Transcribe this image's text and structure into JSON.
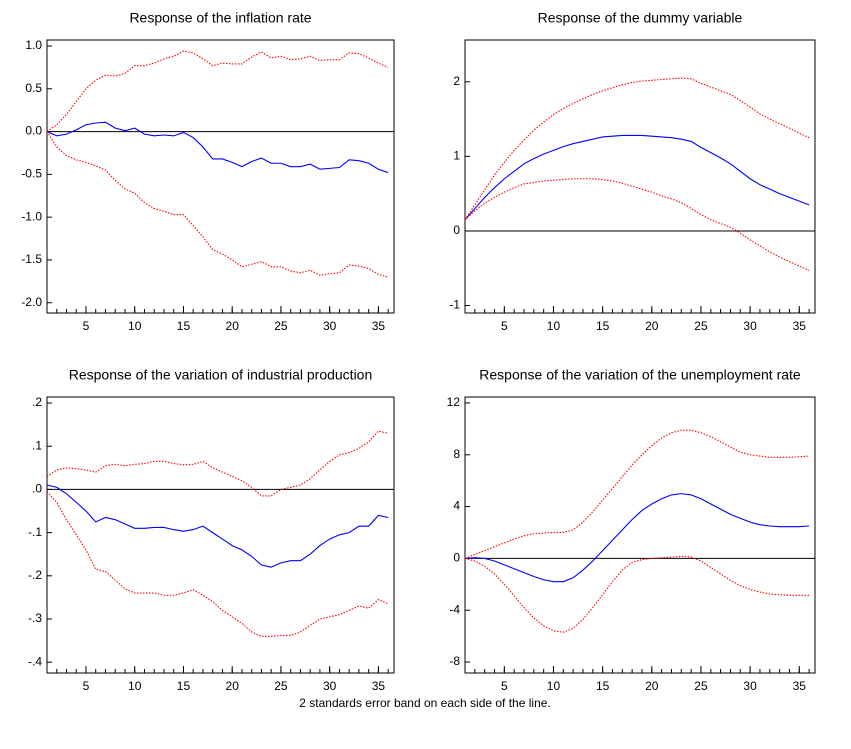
{
  "chart_data": [
    {
      "type": "line",
      "title": "Response of the inflation rate",
      "x": [
        1,
        2,
        3,
        4,
        5,
        6,
        7,
        8,
        9,
        10,
        11,
        12,
        13,
        14,
        15,
        16,
        17,
        18,
        19,
        20,
        21,
        22,
        23,
        24,
        25,
        26,
        27,
        28,
        29,
        30,
        31,
        32,
        33,
        34,
        35,
        36
      ],
      "xlim": [
        1,
        36.6
      ],
      "xticks": [
        5,
        10,
        15,
        20,
        25,
        30,
        35
      ],
      "ylim": [
        -2.12,
        1.07
      ],
      "yticks": [
        {
          "value": 1,
          "label": "1.0"
        },
        0.5,
        {
          "value": 0,
          "label": "0.0"
        },
        -0.5,
        {
          "value": -1,
          "label": "-1.0"
        },
        -1.5,
        {
          "value": -2,
          "label": "-2.0"
        }
      ],
      "reference_line": 0,
      "series": [
        {
          "color": "#0000ff",
          "dash": "solid",
          "values": [
            0,
            -0.05,
            -0.03,
            0.02,
            0.08,
            0.1,
            0.11,
            0.04,
            0.01,
            0.04,
            -0.03,
            -0.05,
            -0.04,
            -0.05,
            -0.01,
            -0.07,
            -0.18,
            -0.32,
            -0.32,
            -0.36,
            -0.41,
            -0.35,
            -0.31,
            -0.37,
            -0.37,
            -0.41,
            -0.41,
            -0.38,
            -0.44,
            -0.43,
            -0.42,
            -0.33,
            -0.34,
            -0.37,
            -0.44,
            -0.48
          ]
        },
        {
          "color": "#ff0000",
          "dash": "dotted",
          "values": [
            0,
            0.08,
            0.2,
            0.35,
            0.5,
            0.6,
            0.66,
            0.65,
            0.68,
            0.77,
            0.77,
            0.8,
            0.85,
            0.88,
            0.94,
            0.92,
            0.85,
            0.77,
            0.8,
            0.79,
            0.79,
            0.87,
            0.93,
            0.86,
            0.88,
            0.84,
            0.85,
            0.88,
            0.83,
            0.84,
            0.84,
            0.92,
            0.91,
            0.86,
            0.8,
            0.75
          ]
        },
        {
          "color": "#ff0000",
          "dash": "dotted",
          "values": [
            0,
            -0.18,
            -0.28,
            -0.33,
            -0.36,
            -0.4,
            -0.45,
            -0.57,
            -0.67,
            -0.72,
            -0.83,
            -0.9,
            -0.93,
            -0.97,
            -0.97,
            -1.1,
            -1.23,
            -1.38,
            -1.43,
            -1.5,
            -1.58,
            -1.55,
            -1.52,
            -1.58,
            -1.58,
            -1.63,
            -1.65,
            -1.62,
            -1.68,
            -1.66,
            -1.65,
            -1.56,
            -1.57,
            -1.6,
            -1.67,
            -1.7
          ]
        }
      ]
    },
    {
      "type": "line",
      "title": "Response of the dummy variable",
      "x": [
        1,
        2,
        3,
        4,
        5,
        6,
        7,
        8,
        9,
        10,
        11,
        12,
        13,
        14,
        15,
        16,
        17,
        18,
        19,
        20,
        21,
        22,
        23,
        24,
        25,
        26,
        27,
        28,
        29,
        30,
        31,
        32,
        33,
        34,
        35,
        36
      ],
      "xlim": [
        1,
        36.6
      ],
      "xticks": [
        5,
        10,
        15,
        20,
        25,
        30,
        35
      ],
      "ylim": [
        -1.1,
        2.56
      ],
      "yticks": [
        -1,
        0,
        1,
        2
      ],
      "reference_line": 0,
      "series": [
        {
          "color": "#0000ff",
          "dash": "solid",
          "values": [
            0.15,
            0.3,
            0.45,
            0.58,
            0.7,
            0.8,
            0.9,
            0.97,
            1.03,
            1.08,
            1.13,
            1.17,
            1.2,
            1.23,
            1.26,
            1.27,
            1.28,
            1.28,
            1.28,
            1.27,
            1.26,
            1.25,
            1.23,
            1.2,
            1.12,
            1.05,
            0.98,
            0.9,
            0.8,
            0.7,
            0.62,
            0.56,
            0.5,
            0.45,
            0.4,
            0.35
          ]
        },
        {
          "color": "#ff0000",
          "dash": "dotted",
          "values": [
            0.15,
            0.35,
            0.55,
            0.75,
            0.92,
            1.08,
            1.22,
            1.35,
            1.46,
            1.56,
            1.64,
            1.71,
            1.77,
            1.83,
            1.88,
            1.92,
            1.96,
            1.99,
            2.01,
            2.02,
            2.03,
            2.04,
            2.05,
            2.04,
            1.98,
            1.93,
            1.88,
            1.83,
            1.75,
            1.66,
            1.57,
            1.5,
            1.44,
            1.38,
            1.31,
            1.25
          ]
        },
        {
          "color": "#ff0000",
          "dash": "dotted",
          "values": [
            0.15,
            0.27,
            0.37,
            0.45,
            0.52,
            0.58,
            0.63,
            0.65,
            0.67,
            0.68,
            0.69,
            0.7,
            0.7,
            0.7,
            0.69,
            0.67,
            0.64,
            0.6,
            0.56,
            0.52,
            0.47,
            0.43,
            0.38,
            0.3,
            0.22,
            0.15,
            0.1,
            0.05,
            -0.03,
            -0.12,
            -0.2,
            -0.28,
            -0.35,
            -0.41,
            -0.47,
            -0.53
          ]
        }
      ]
    },
    {
      "type": "line",
      "title": "Response of the variation of industrial production",
      "x": [
        1,
        2,
        3,
        4,
        5,
        6,
        7,
        8,
        9,
        10,
        11,
        12,
        13,
        14,
        15,
        16,
        17,
        18,
        19,
        20,
        21,
        22,
        23,
        24,
        25,
        26,
        27,
        28,
        29,
        30,
        31,
        32,
        33,
        34,
        35,
        36
      ],
      "xlim": [
        1,
        36.6
      ],
      "xticks": [
        5,
        10,
        15,
        20,
        25,
        30,
        35
      ],
      "ylim": [
        -0.425,
        0.214
      ],
      "yticks": [
        {
          "value": 0.2,
          "label": ".2"
        },
        {
          "value": 0.1,
          "label": ".1"
        },
        {
          "value": 0,
          "label": ".0"
        },
        {
          "value": -0.1,
          "label": "-.1"
        },
        {
          "value": -0.2,
          "label": "-.2"
        },
        {
          "value": -0.3,
          "label": "-.3"
        },
        {
          "value": -0.4,
          "label": "-.4"
        }
      ],
      "reference_line": 0,
      "series": [
        {
          "color": "#0000ff",
          "dash": "solid",
          "values": [
            0.01,
            0.005,
            -0.01,
            -0.03,
            -0.05,
            -0.075,
            -0.065,
            -0.07,
            -0.08,
            -0.09,
            -0.09,
            -0.088,
            -0.088,
            -0.093,
            -0.097,
            -0.093,
            -0.085,
            -0.1,
            -0.115,
            -0.13,
            -0.14,
            -0.155,
            -0.175,
            -0.18,
            -0.17,
            -0.165,
            -0.165,
            -0.15,
            -0.13,
            -0.115,
            -0.105,
            -0.1,
            -0.085,
            -0.085,
            -0.06,
            -0.065
          ]
        },
        {
          "color": "#ff0000",
          "dash": "dotted",
          "values": [
            0.03,
            0.045,
            0.05,
            0.048,
            0.045,
            0.04,
            0.055,
            0.058,
            0.055,
            0.058,
            0.06,
            0.065,
            0.065,
            0.06,
            0.057,
            0.058,
            0.065,
            0.05,
            0.04,
            0.03,
            0.02,
            0.005,
            -0.015,
            -0.015,
            0,
            0.005,
            0.01,
            0.025,
            0.045,
            0.065,
            0.08,
            0.085,
            0.095,
            0.11,
            0.135,
            0.13
          ]
        },
        {
          "color": "#ff0000",
          "dash": "dotted",
          "values": [
            -0.005,
            -0.03,
            -0.07,
            -0.105,
            -0.14,
            -0.185,
            -0.19,
            -0.21,
            -0.23,
            -0.24,
            -0.24,
            -0.24,
            -0.245,
            -0.245,
            -0.24,
            -0.232,
            -0.245,
            -0.26,
            -0.28,
            -0.295,
            -0.31,
            -0.33,
            -0.34,
            -0.34,
            -0.338,
            -0.338,
            -0.33,
            -0.315,
            -0.3,
            -0.295,
            -0.29,
            -0.28,
            -0.27,
            -0.275,
            -0.255,
            -0.265
          ]
        }
      ]
    },
    {
      "type": "line",
      "title": "Response of the variation of the unemployment rate",
      "x": [
        1,
        2,
        3,
        4,
        5,
        6,
        7,
        8,
        9,
        10,
        11,
        12,
        13,
        14,
        15,
        16,
        17,
        18,
        19,
        20,
        21,
        22,
        23,
        24,
        25,
        26,
        27,
        28,
        29,
        30,
        31,
        32,
        33,
        34,
        35,
        36
      ],
      "xlim": [
        1,
        36.6
      ],
      "xticks": [
        5,
        10,
        15,
        20,
        25,
        30,
        35
      ],
      "ylim": [
        -8.85,
        12.46
      ],
      "yticks": [
        12,
        8,
        4,
        0,
        -4,
        -8
      ],
      "reference_line": 0,
      "series": [
        {
          "color": "#0000ff",
          "dash": "solid",
          "values": [
            0,
            0.05,
            0,
            -0.2,
            -0.5,
            -0.8,
            -1.1,
            -1.4,
            -1.65,
            -1.8,
            -1.8,
            -1.5,
            -0.9,
            -0.2,
            0.6,
            1.4,
            2.2,
            3,
            3.7,
            4.2,
            4.6,
            4.9,
            5,
            4.9,
            4.6,
            4.2,
            3.8,
            3.4,
            3.1,
            2.8,
            2.6,
            2.5,
            2.45,
            2.45,
            2.45,
            2.5
          ]
        },
        {
          "color": "#ff0000",
          "dash": "dotted",
          "values": [
            0,
            0.3,
            0.6,
            0.9,
            1.2,
            1.5,
            1.75,
            1.9,
            1.95,
            2,
            2,
            2.2,
            2.8,
            3.6,
            4.5,
            5.4,
            6.3,
            7.2,
            8,
            8.7,
            9.3,
            9.7,
            9.9,
            9.9,
            9.7,
            9.4,
            9,
            8.6,
            8.2,
            8,
            7.9,
            7.8,
            7.8,
            7.8,
            7.85,
            7.9
          ]
        },
        {
          "color": "#ff0000",
          "dash": "dotted",
          "values": [
            0,
            -0.2,
            -0.6,
            -1.2,
            -2,
            -2.9,
            -3.8,
            -4.6,
            -5.2,
            -5.6,
            -5.7,
            -5.4,
            -4.7,
            -3.8,
            -2.8,
            -1.8,
            -0.9,
            -0.3,
            -0.1,
            0,
            0.05,
            0.1,
            0.15,
            0.1,
            -0.2,
            -0.7,
            -1.2,
            -1.7,
            -2.1,
            -2.4,
            -2.6,
            -2.75,
            -2.8,
            -2.85,
            -2.85,
            -2.85
          ]
        }
      ]
    }
  ],
  "caption": "2 standards error band on each side of the line."
}
